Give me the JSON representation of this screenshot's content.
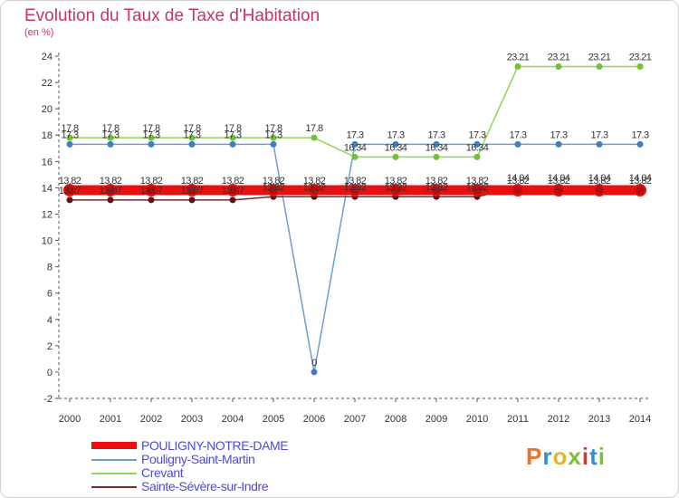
{
  "title": "Evolution du Taux de Taxe d'Habitation",
  "subtitle": "(en %)",
  "logo": {
    "text": "Proxiti",
    "colors": [
      "#e8732b",
      "#2d8fd8",
      "#e8b32b",
      "#7bbf3a",
      "#d23a2c",
      "#2d8fd8",
      "#7bbf3a"
    ]
  },
  "chart_data": {
    "type": "line",
    "title": "Evolution du Taux de Taxe d'Habitation",
    "ylabel": "(en %)",
    "xlabel": "",
    "ylim": [
      -2,
      24
    ],
    "yticks": [
      -2,
      0,
      2,
      4,
      6,
      8,
      10,
      12,
      14,
      16,
      18,
      20,
      22,
      24
    ],
    "x": [
      "2000",
      "2001",
      "2002",
      "2003",
      "2004",
      "2005",
      "2006",
      "2007",
      "2008",
      "2009",
      "2010",
      "2011",
      "2012",
      "2013",
      "2014"
    ],
    "series": [
      {
        "name": "POULIGNY-NOTRE-DAME",
        "color": "#e81010",
        "marker": "#b01010",
        "values": [
          13.82,
          13.82,
          13.82,
          13.82,
          13.82,
          13.82,
          13.82,
          13.82,
          13.82,
          13.82,
          13.82,
          13.82,
          13.82,
          13.82,
          13.82
        ],
        "labels": [
          "13.82",
          "13.82",
          "13.82",
          "13.82",
          "13.82",
          "13.82",
          "13.82",
          "13.82",
          "13.82",
          "13.82",
          "13.82",
          "13.82",
          "13.82",
          "13.82",
          "13.82"
        ]
      },
      {
        "name": "Pouligny-Saint-Martin",
        "color": "#6b9fd4",
        "marker": "#3f7fc0",
        "values": [
          17.3,
          17.3,
          17.3,
          17.3,
          17.3,
          17.3,
          0,
          17.3,
          17.3,
          17.3,
          17.3,
          17.3,
          17.3,
          17.3,
          17.3
        ],
        "labels": [
          "17.3",
          "17.3",
          "17.3",
          "17.3",
          "17.3",
          "17.3",
          "0",
          "17.3",
          "17.3",
          "17.3",
          "17.3",
          "17.3",
          "17.3",
          "17.3",
          "17.3"
        ]
      },
      {
        "name": "Crevant",
        "color": "#8fd65a",
        "marker": "#6fc23a",
        "values": [
          17.8,
          17.8,
          17.8,
          17.8,
          17.8,
          17.8,
          17.8,
          16.34,
          16.34,
          16.34,
          16.34,
          23.21,
          23.21,
          23.21,
          23.21
        ],
        "labels": [
          "17.8",
          "17.8",
          "17.8",
          "17.8",
          "17.8",
          "17.8",
          "17.8",
          "16.34",
          "16.34",
          "16.34",
          "16.34",
          "23.21",
          "23.21",
          "23.21",
          "23.21"
        ]
      },
      {
        "name": "Sainte-Sévère-sur-Indre",
        "color": "#7a2a2a",
        "marker": "#5a1515",
        "values": [
          13.07,
          13.07,
          13.07,
          13.07,
          13.07,
          13.32,
          13.32,
          13.32,
          13.32,
          13.32,
          13.32,
          14.04,
          14.04,
          14.04,
          14.04
        ],
        "labels": [
          "13.07",
          "13.07",
          "13.07",
          "13.07",
          "13.07",
          "13.32",
          "13.32",
          "13.32",
          "13.32",
          "13.32",
          "13.32",
          "14.04",
          "14.04",
          "14.04",
          "14.04"
        ]
      }
    ],
    "legend_position": "bottom-left",
    "grid": false
  }
}
